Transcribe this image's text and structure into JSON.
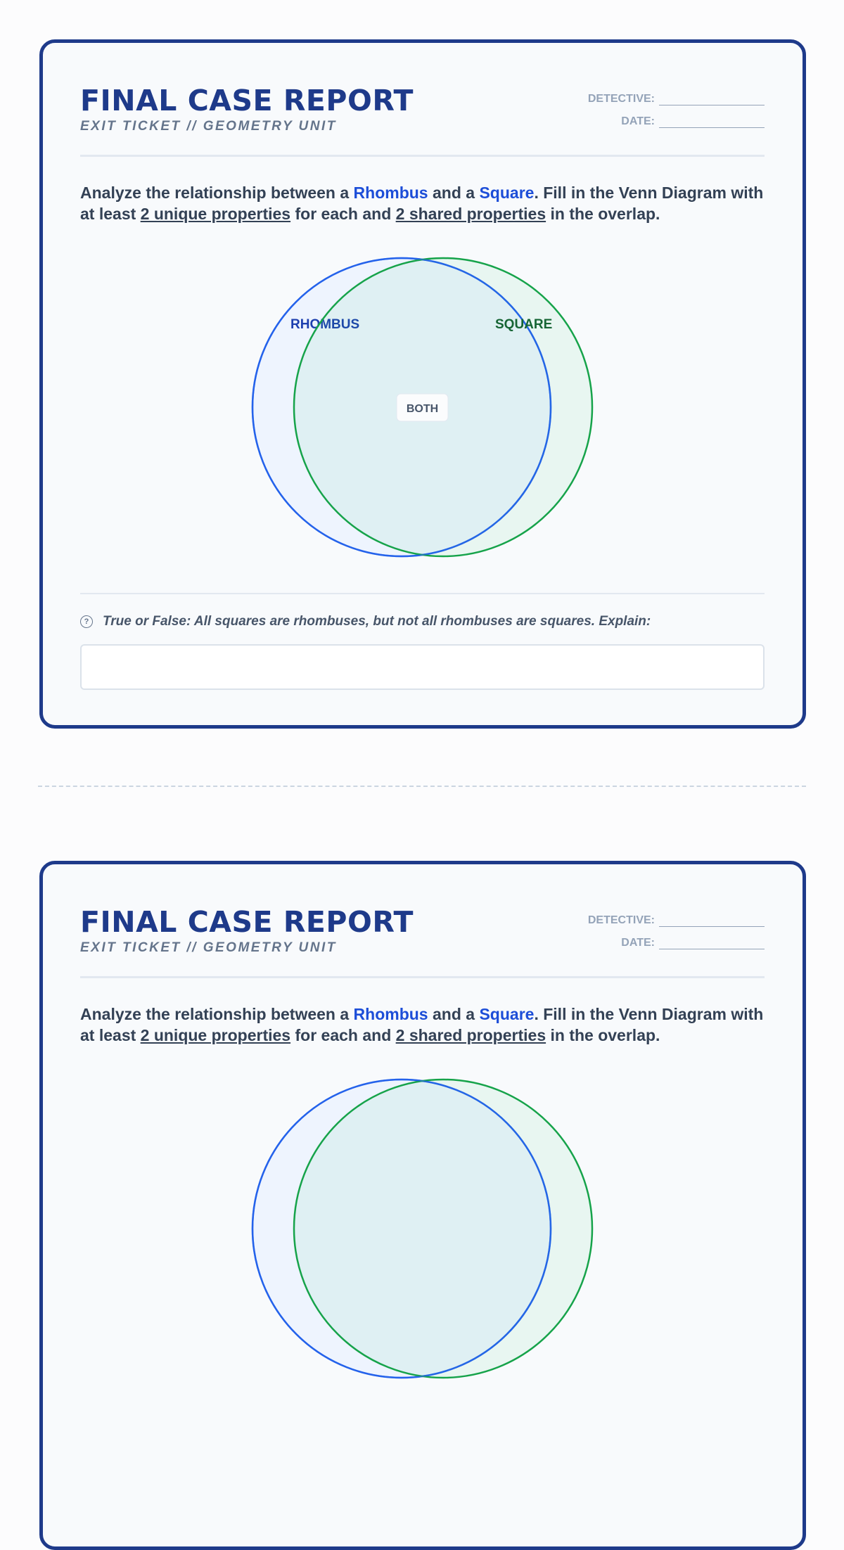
{
  "report": {
    "title": "FINAL CASE REPORT",
    "subtitle": "EXIT TICKET // GEOMETRY UNIT",
    "detective_label": "DETECTIVE:",
    "date_label": "DATE:",
    "prompt": {
      "p1": "Analyze the relationship between a ",
      "rhombus": "Rhombus",
      "p2": " and a ",
      "square": "Square",
      "p3": ". Fill in the Venn Diagram with at least ",
      "unique": "2 unique properties",
      "p4": " for each and ",
      "shared": "2 shared properties",
      "p5": " in the overlap."
    },
    "venn": {
      "left_label": "RHOMBUS",
      "right_label": "SQUARE",
      "center_label": "BOTH",
      "left_color": "#2563eb",
      "right_color": "#16a34a"
    },
    "question_icon": "question-circle-icon",
    "question": "True or False: All squares are rhombuses, but not all rhombuses are squares. Explain:",
    "answer_value": ""
  }
}
